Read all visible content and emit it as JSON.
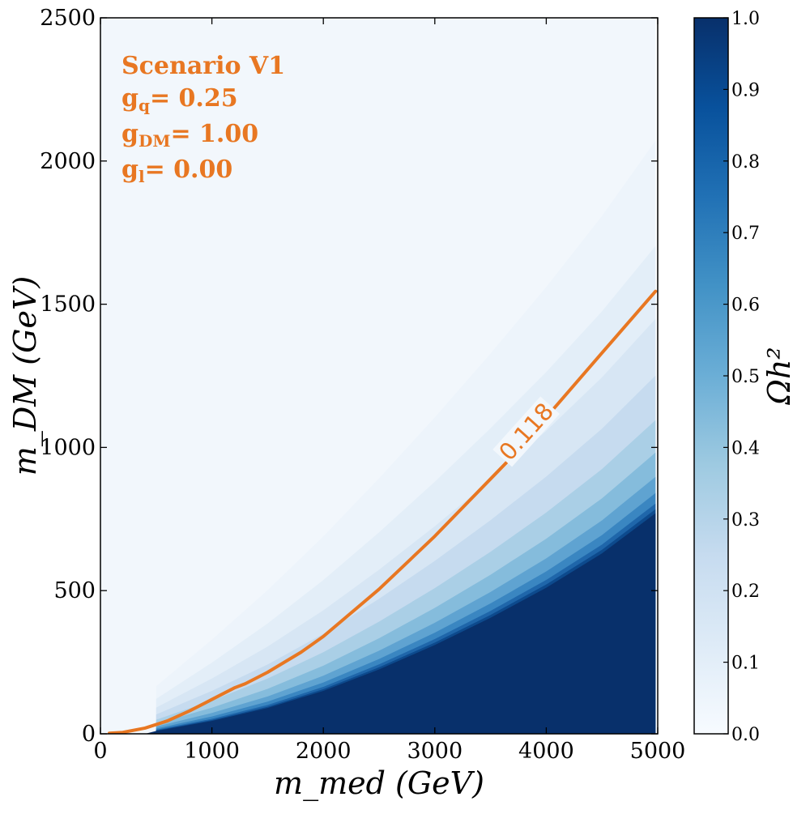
{
  "chart_data": {
    "type": "heatmap",
    "xlabel": "m_med (GeV)",
    "ylabel": "m_DM (GeV)",
    "xlim": [
      0,
      5000
    ],
    "ylim": [
      0,
      2500
    ],
    "x_ticks": [
      "0",
      "1000",
      "2000",
      "3000",
      "4000",
      "5000"
    ],
    "y_ticks": [
      "0",
      "500",
      "1000",
      "1500",
      "2000",
      "2500"
    ],
    "x_tick_values": [
      0,
      1000,
      2000,
      3000,
      4000,
      5000
    ],
    "y_tick_values": [
      0,
      500,
      1000,
      1500,
      2000,
      2500
    ],
    "data_extent_x": [
      0,
      4980
    ],
    "colorbar": {
      "label": "Ωh²",
      "range": [
        0.0,
        1.0
      ],
      "ticks": [
        "0.0",
        "0.1",
        "0.2",
        "0.3",
        "0.4",
        "0.5",
        "0.6",
        "0.7",
        "0.8",
        "0.9",
        "1.0"
      ],
      "tick_values": [
        0.0,
        0.1,
        0.2,
        0.3,
        0.4,
        0.5,
        0.6,
        0.7,
        0.8,
        0.9,
        1.0
      ],
      "colors": [
        "#f7fbff",
        "#deebf7",
        "#c6dbef",
        "#9ecae1",
        "#6baed6",
        "#4292c6",
        "#2171b5",
        "#08519c",
        "#08306b"
      ]
    },
    "saturation_boundary": {
      "x": [
        500,
        1000,
        1500,
        2000,
        2500,
        3000,
        3500,
        4000,
        4500,
        4980
      ],
      "y": [
        10,
        45,
        90,
        150,
        225,
        310,
        405,
        510,
        630,
        770
      ]
    },
    "contour": {
      "level_label": "0.118",
      "color": "#e87722",
      "x": [
        80,
        200,
        400,
        600,
        800,
        1000,
        1200,
        1300,
        1500,
        1800,
        2000,
        2500,
        3000,
        3500,
        3650,
        4100,
        4500,
        4980
      ],
      "y": [
        2,
        5,
        20,
        45,
        80,
        120,
        160,
        175,
        215,
        285,
        340,
        505,
        690,
        890,
        950,
        1150,
        1330,
        1545
      ],
      "label_position": {
        "x": 3820,
        "y": 1055
      },
      "label_angle_deg": -48
    },
    "annotations": {
      "title": "Scenario V1",
      "lines": [
        {
          "symbol": "g",
          "sub": "q",
          "rest": "= 0.25"
        },
        {
          "symbol": "g",
          "sub": "DM",
          "rest": "= 1.00"
        },
        {
          "symbol": "g",
          "sub": "l",
          "rest": "= 0.00"
        }
      ],
      "color": "#e87722"
    }
  }
}
